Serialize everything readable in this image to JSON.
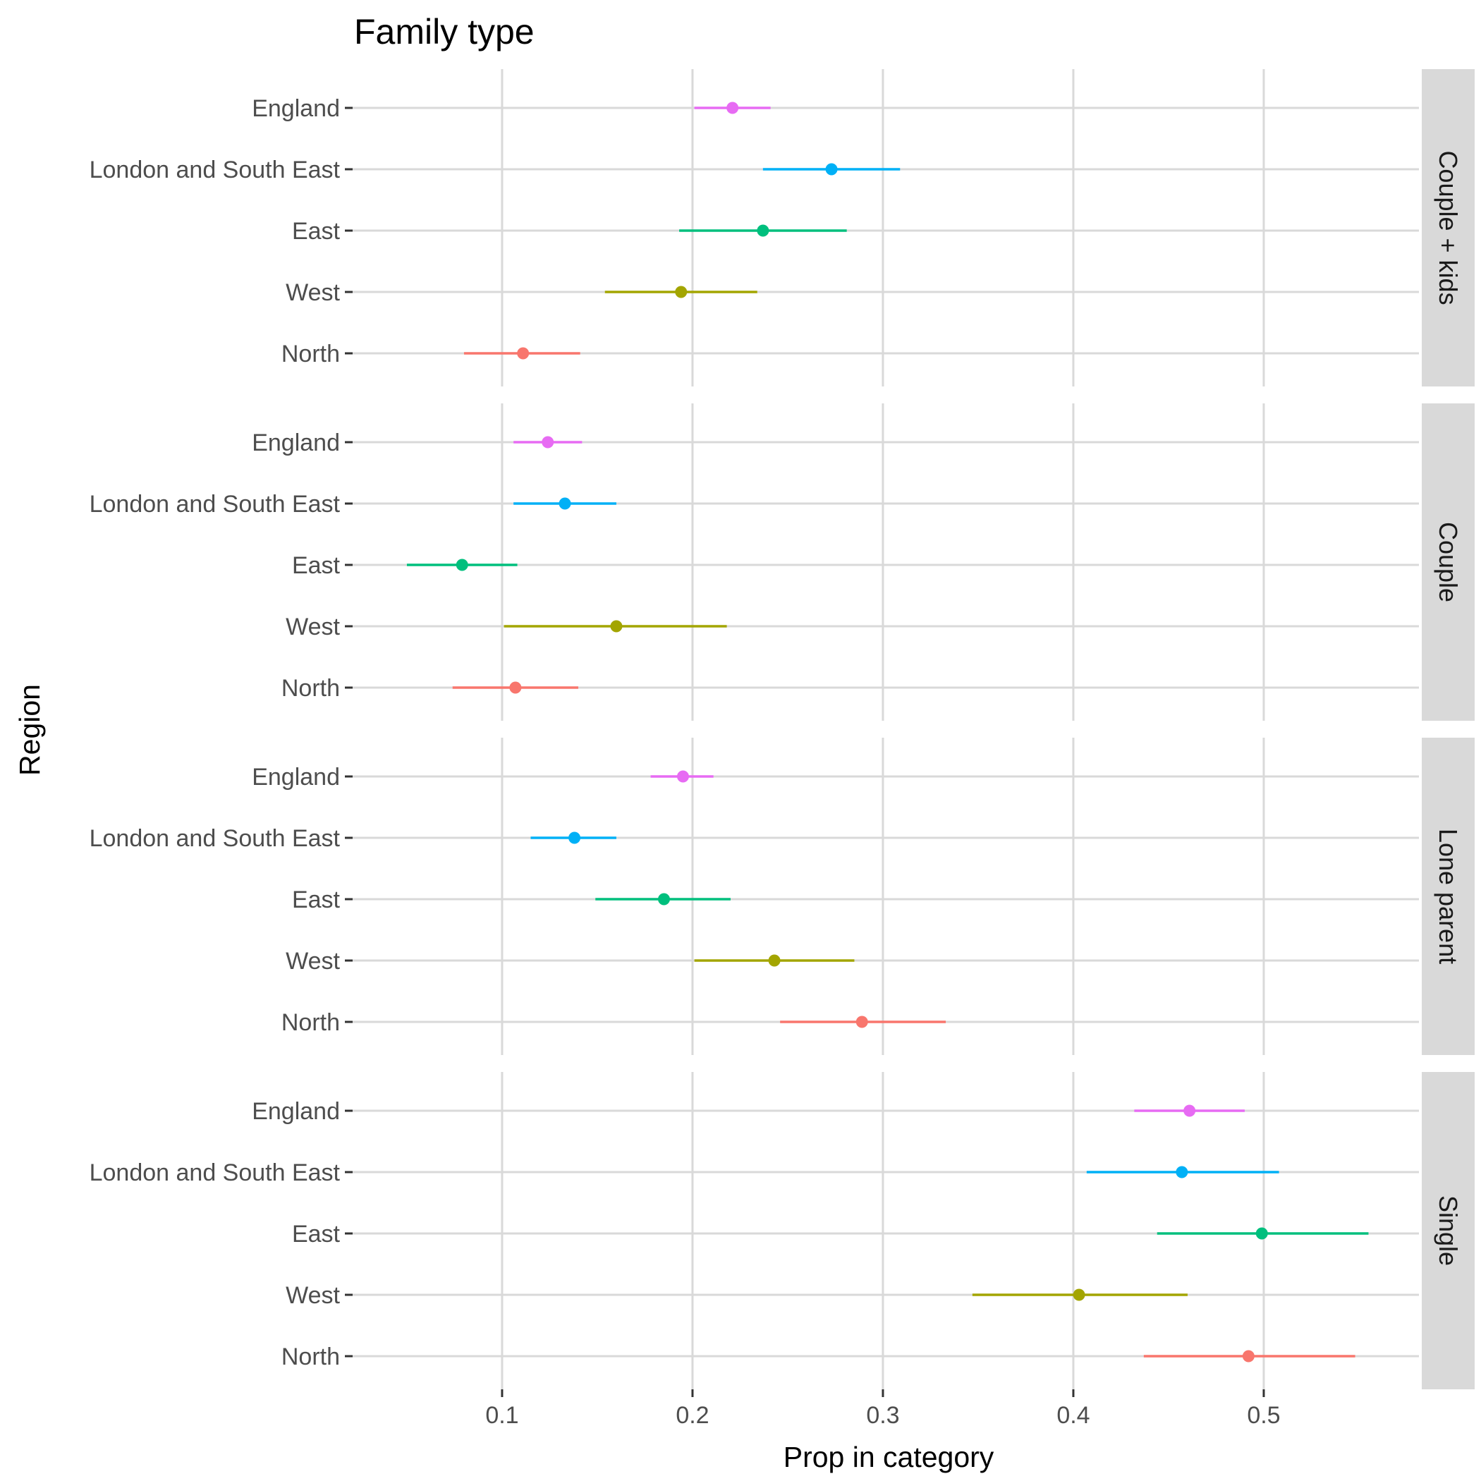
{
  "chart_data": {
    "type": "pointrange",
    "title": "Family type",
    "xlabel": "Prop in category",
    "ylabel": "Region",
    "xlim": [
      0.0215,
      0.5815
    ],
    "xticks": [
      0.1,
      0.2,
      0.3,
      0.4,
      0.5
    ],
    "xtick_labels": [
      "0.1",
      "0.2",
      "0.3",
      "0.4",
      "0.5"
    ],
    "grid": true,
    "legend": "none",
    "categories": [
      "North",
      "West",
      "East",
      "London and South East",
      "England"
    ],
    "colors": {
      "North": "#F8766D",
      "West": "#A3A500",
      "East": "#00BF7D",
      "London and South East": "#00B0F6",
      "England": "#E76BF3"
    },
    "facets": [
      {
        "label": "Couple + kids",
        "points": [
          {
            "region": "England",
            "estimate": 0.221,
            "lower": 0.201,
            "upper": 0.241
          },
          {
            "region": "London and South East",
            "estimate": 0.273,
            "lower": 0.237,
            "upper": 0.309
          },
          {
            "region": "East",
            "estimate": 0.237,
            "lower": 0.193,
            "upper": 0.281
          },
          {
            "region": "West",
            "estimate": 0.194,
            "lower": 0.154,
            "upper": 0.234
          },
          {
            "region": "North",
            "estimate": 0.111,
            "lower": 0.08,
            "upper": 0.141
          }
        ]
      },
      {
        "label": "Couple",
        "points": [
          {
            "region": "England",
            "estimate": 0.124,
            "lower": 0.106,
            "upper": 0.142
          },
          {
            "region": "London and South East",
            "estimate": 0.133,
            "lower": 0.106,
            "upper": 0.16
          },
          {
            "region": "East",
            "estimate": 0.079,
            "lower": 0.05,
            "upper": 0.108
          },
          {
            "region": "West",
            "estimate": 0.16,
            "lower": 0.101,
            "upper": 0.218
          },
          {
            "region": "North",
            "estimate": 0.107,
            "lower": 0.074,
            "upper": 0.14
          }
        ]
      },
      {
        "label": "Lone parent",
        "points": [
          {
            "region": "England",
            "estimate": 0.195,
            "lower": 0.178,
            "upper": 0.211
          },
          {
            "region": "London and South East",
            "estimate": 0.138,
            "lower": 0.115,
            "upper": 0.16
          },
          {
            "region": "East",
            "estimate": 0.185,
            "lower": 0.149,
            "upper": 0.22
          },
          {
            "region": "West",
            "estimate": 0.243,
            "lower": 0.201,
            "upper": 0.285
          },
          {
            "region": "North",
            "estimate": 0.289,
            "lower": 0.246,
            "upper": 0.333
          }
        ]
      },
      {
        "label": "Single",
        "points": [
          {
            "region": "England",
            "estimate": 0.461,
            "lower": 0.432,
            "upper": 0.49
          },
          {
            "region": "London and South East",
            "estimate": 0.457,
            "lower": 0.407,
            "upper": 0.508
          },
          {
            "region": "East",
            "estimate": 0.499,
            "lower": 0.444,
            "upper": 0.555
          },
          {
            "region": "West",
            "estimate": 0.403,
            "lower": 0.347,
            "upper": 0.46
          },
          {
            "region": "North",
            "estimate": 0.492,
            "lower": 0.437,
            "upper": 0.548
          }
        ]
      }
    ]
  }
}
